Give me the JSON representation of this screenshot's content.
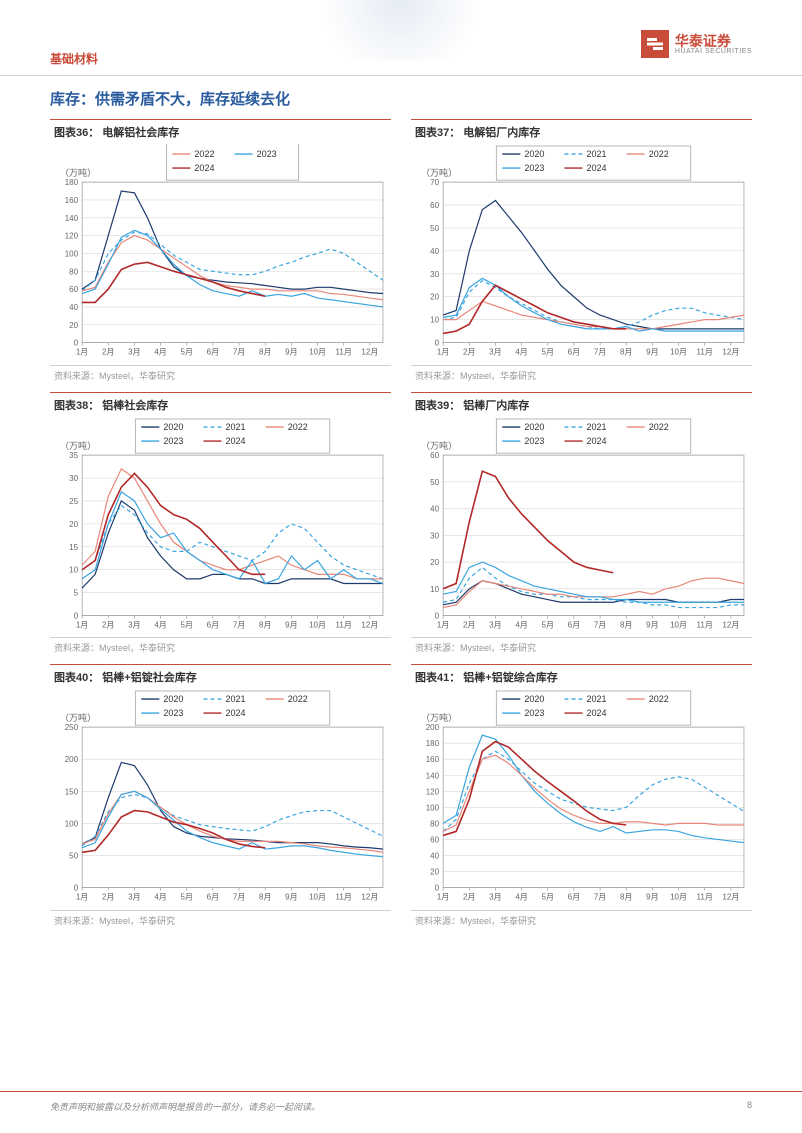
{
  "header": {
    "category": "基础材料",
    "company_cn": "华泰证券",
    "company_en": "HUATAI SECURITIES"
  },
  "section_title": "库存：供需矛盾不大，库存延续去化",
  "legend_labels": {
    "s2020": "2020",
    "s2021": "2021",
    "s2022": "2022",
    "s2023": "2023",
    "s2024": "2024"
  },
  "x_labels": [
    "1月",
    "2月",
    "3月",
    "4月",
    "5月",
    "6月",
    "7月",
    "8月",
    "9月",
    "10月",
    "11月",
    "12月"
  ],
  "series_colors": {
    "s2020": "#1f3a6e",
    "s2021": "#3aa5e0",
    "s2022": "#e8887a",
    "s2023": "#3aa5e0",
    "s2024": "#b22828"
  },
  "series_dash": {
    "s2020": "",
    "s2021": "4 3",
    "s2022": "",
    "s2023": "",
    "s2024": ""
  },
  "series_width": {
    "s2020": 1.2,
    "s2021": 1.2,
    "s2022": 1.2,
    "s2023": 1.2,
    "s2024": 1.6
  },
  "chart_style": {
    "plot_bg": "#ffffff",
    "grid_color": "#d8d8d8",
    "axis_color": "#888888",
    "tick_fontsize": 8,
    "axis_label_fontsize": 9,
    "axis_label_color": "#666666",
    "legend_fontsize": 9,
    "legend_box_stroke": "#888888"
  },
  "charts": [
    {
      "id": "c36",
      "title": "图表36： 电解铝社会库存",
      "source": "资料来源：Mysteel，华泰研究",
      "ylabel": "（万吨）",
      "ylim": [
        0,
        180
      ],
      "ytick_step": 20,
      "legend_series": [
        "s2020",
        "s2021",
        "s2022",
        "s2023",
        "s2024"
      ],
      "legend_cols": 2,
      "series": {
        "s2020": [
          60,
          70,
          120,
          170,
          168,
          140,
          105,
          85,
          75,
          72,
          70,
          68,
          67,
          66,
          64,
          62,
          60,
          60,
          62,
          62,
          60,
          58,
          56,
          55
        ],
        "s2021": [
          58,
          70,
          100,
          115,
          124,
          122,
          110,
          98,
          90,
          82,
          80,
          78,
          76,
          76,
          80,
          86,
          90,
          96,
          100,
          105,
          100,
          90,
          80,
          70
        ],
        "s2022": [
          58,
          62,
          90,
          112,
          120,
          115,
          105,
          95,
          85,
          75,
          68,
          64,
          62,
          60,
          60,
          58,
          58,
          58,
          58,
          55,
          54,
          52,
          50,
          48
        ],
        "s2023": [
          55,
          60,
          88,
          118,
          126,
          120,
          105,
          88,
          75,
          65,
          58,
          55,
          52,
          58,
          52,
          54,
          52,
          55,
          50,
          48,
          46,
          44,
          42,
          40
        ],
        "s2024": [
          45,
          45,
          60,
          82,
          88,
          90,
          85,
          80,
          76,
          72,
          68,
          62,
          58,
          55,
          52
        ]
      }
    },
    {
      "id": "c37",
      "title": "图表37： 电解铝厂内库存",
      "source": "资料来源：Mysteel，华泰研究",
      "ylabel": "（万吨）",
      "ylim": [
        0,
        70
      ],
      "ytick_step": 10,
      "legend_series": [
        "s2020",
        "s2021",
        "s2022",
        "s2023",
        "s2024"
      ],
      "legend_cols": 3,
      "series": {
        "s2020": [
          12,
          14,
          40,
          58,
          62,
          55,
          48,
          40,
          32,
          25,
          20,
          15,
          12,
          10,
          8,
          7,
          6,
          6,
          6,
          6,
          6,
          6,
          6,
          6
        ],
        "s2021": [
          10,
          11,
          22,
          27,
          24,
          20,
          17,
          14,
          11,
          9,
          8,
          7,
          6,
          6,
          7,
          9,
          12,
          14,
          15,
          15,
          13,
          12,
          11,
          10
        ],
        "s2022": [
          10,
          10,
          14,
          18,
          16,
          14,
          12,
          11,
          10,
          9,
          8,
          7,
          7,
          6,
          6,
          6,
          6,
          7,
          8,
          9,
          10,
          10,
          11,
          12
        ],
        "s2023": [
          11,
          12,
          24,
          28,
          25,
          20,
          16,
          13,
          10,
          8,
          7,
          6,
          6,
          6,
          7,
          5,
          6,
          5,
          5,
          5,
          5,
          5,
          5,
          5
        ],
        "s2024": [
          4,
          5,
          8,
          18,
          25,
          22,
          19,
          16,
          13,
          11,
          9,
          8,
          7,
          6,
          6
        ]
      }
    },
    {
      "id": "c38",
      "title": "图表38： 铝棒社会库存",
      "source": "资料来源：Mysteel，华泰研究",
      "ylabel": "（万吨）",
      "ylim": [
        0,
        35
      ],
      "ytick_step": 5,
      "legend_series": [
        "s2020",
        "s2021",
        "s2022",
        "s2023",
        "s2024"
      ],
      "legend_cols": 3,
      "series": {
        "s2020": [
          6,
          9,
          18,
          25,
          23,
          17,
          13,
          10,
          8,
          8,
          9,
          9,
          8,
          8,
          7,
          7,
          8,
          8,
          8,
          8,
          7,
          7,
          7,
          7
        ],
        "s2021": [
          10,
          12,
          20,
          24,
          22,
          18,
          15,
          14,
          14,
          16,
          15,
          14,
          13,
          12,
          14,
          18,
          20,
          19,
          16,
          13,
          11,
          10,
          9,
          8
        ],
        "s2022": [
          11,
          14,
          26,
          32,
          30,
          25,
          20,
          16,
          14,
          12,
          11,
          10,
          10,
          11,
          12,
          13,
          11,
          10,
          9,
          9,
          9,
          8,
          8,
          8
        ],
        "s2023": [
          8,
          10,
          20,
          27,
          25,
          20,
          17,
          18,
          14,
          12,
          10,
          9,
          8,
          12,
          7,
          8,
          13,
          10,
          12,
          8,
          10,
          8,
          8,
          7
        ],
        "s2024": [
          10,
          12,
          22,
          28,
          31,
          28,
          24,
          22,
          21,
          19,
          16,
          13,
          10,
          9,
          9
        ]
      }
    },
    {
      "id": "c39",
      "title": "图表39： 铝棒厂内库存",
      "source": "资料来源：Mysteel，华泰研究",
      "ylabel": "（万吨）",
      "ylim": [
        0,
        60
      ],
      "ytick_step": 10,
      "legend_series": [
        "s2020",
        "s2021",
        "s2022",
        "s2023",
        "s2024"
      ],
      "legend_cols": 3,
      "series": {
        "s2020": [
          4,
          5,
          10,
          13,
          12,
          10,
          8,
          7,
          6,
          5,
          5,
          5,
          5,
          5,
          6,
          6,
          6,
          6,
          5,
          5,
          5,
          5,
          6,
          6
        ],
        "s2021": [
          5,
          6,
          14,
          18,
          14,
          11,
          9,
          8,
          8,
          7,
          7,
          6,
          6,
          6,
          5,
          5,
          4,
          4,
          3,
          3,
          3,
          3,
          4,
          4
        ],
        "s2022": [
          3,
          4,
          9,
          13,
          12,
          11,
          10,
          9,
          8,
          8,
          7,
          7,
          7,
          7,
          8,
          9,
          8,
          10,
          11,
          13,
          14,
          14,
          13,
          12
        ],
        "s2023": [
          8,
          9,
          18,
          20,
          18,
          15,
          13,
          11,
          10,
          9,
          8,
          7,
          7,
          6,
          6,
          5,
          5,
          5,
          5,
          5,
          5,
          5,
          5,
          5
        ],
        "s2024": [
          10,
          12,
          35,
          54,
          52,
          44,
          38,
          33,
          28,
          24,
          20,
          18,
          17,
          16
        ]
      }
    },
    {
      "id": "c40",
      "title": "图表40： 铝棒+铝锭社会库存",
      "source": "资料来源：Mysteel，华泰研究",
      "ylabel": "（万吨）",
      "ylim": [
        0,
        250
      ],
      "ytick_step": 50,
      "legend_series": [
        "s2020",
        "s2021",
        "s2022",
        "s2023",
        "s2024"
      ],
      "legend_cols": 3,
      "series": {
        "s2020": [
          68,
          78,
          140,
          195,
          190,
          160,
          120,
          95,
          85,
          80,
          78,
          76,
          75,
          74,
          72,
          70,
          70,
          70,
          70,
          68,
          65,
          63,
          62,
          60
        ],
        "s2021": [
          65,
          80,
          118,
          140,
          145,
          140,
          125,
          112,
          105,
          98,
          95,
          92,
          90,
          88,
          95,
          105,
          112,
          118,
          120,
          120,
          110,
          100,
          90,
          80
        ],
        "s2022": [
          68,
          75,
          115,
          145,
          150,
          140,
          125,
          110,
          98,
          88,
          80,
          75,
          72,
          72,
          72,
          72,
          70,
          68,
          65,
          63,
          62,
          60,
          58,
          55
        ],
        "s2023": [
          62,
          70,
          110,
          145,
          150,
          140,
          122,
          105,
          88,
          78,
          70,
          65,
          60,
          70,
          60,
          62,
          65,
          65,
          62,
          58,
          55,
          52,
          50,
          48
        ],
        "s2024": [
          55,
          58,
          82,
          110,
          120,
          118,
          110,
          102,
          98,
          92,
          85,
          75,
          68,
          64,
          62
        ]
      }
    },
    {
      "id": "c41",
      "title": "图表41： 铝棒+铝锭综合库存",
      "source": "资料来源：Mysteel，华泰研究",
      "ylabel": "（万吨）",
      "ylim": [
        0,
        200
      ],
      "ytick_step": 20,
      "legend_series": [
        "s2020",
        "s2021",
        "s2022",
        "s2023",
        "s2024"
      ],
      "legend_cols": 3,
      "series": {
        "s2023": [
          80,
          90,
          150,
          190,
          185,
          165,
          140,
          120,
          105,
          92,
          82,
          75,
          70,
          76,
          68,
          70,
          72,
          72,
          70,
          65,
          62,
          60,
          58,
          56
        ],
        "s2021": [
          70,
          85,
          130,
          160,
          170,
          160,
          145,
          130,
          120,
          110,
          105,
          100,
          98,
          96,
          100,
          115,
          128,
          135,
          138,
          135,
          125,
          115,
          105,
          95
        ],
        "s2022": [
          70,
          78,
          120,
          160,
          165,
          155,
          140,
          124,
          110,
          98,
          90,
          84,
          80,
          80,
          82,
          82,
          80,
          78,
          80,
          80,
          80,
          78,
          78,
          78
        ],
        "s2024": [
          65,
          70,
          110,
          170,
          182,
          175,
          160,
          145,
          132,
          120,
          108,
          95,
          85,
          80,
          78
        ]
      }
    }
  ],
  "footer": {
    "disclaimer": "免责声明和披露以及分析师声明是报告的一部分，请务必一起阅读。",
    "page": "8"
  }
}
